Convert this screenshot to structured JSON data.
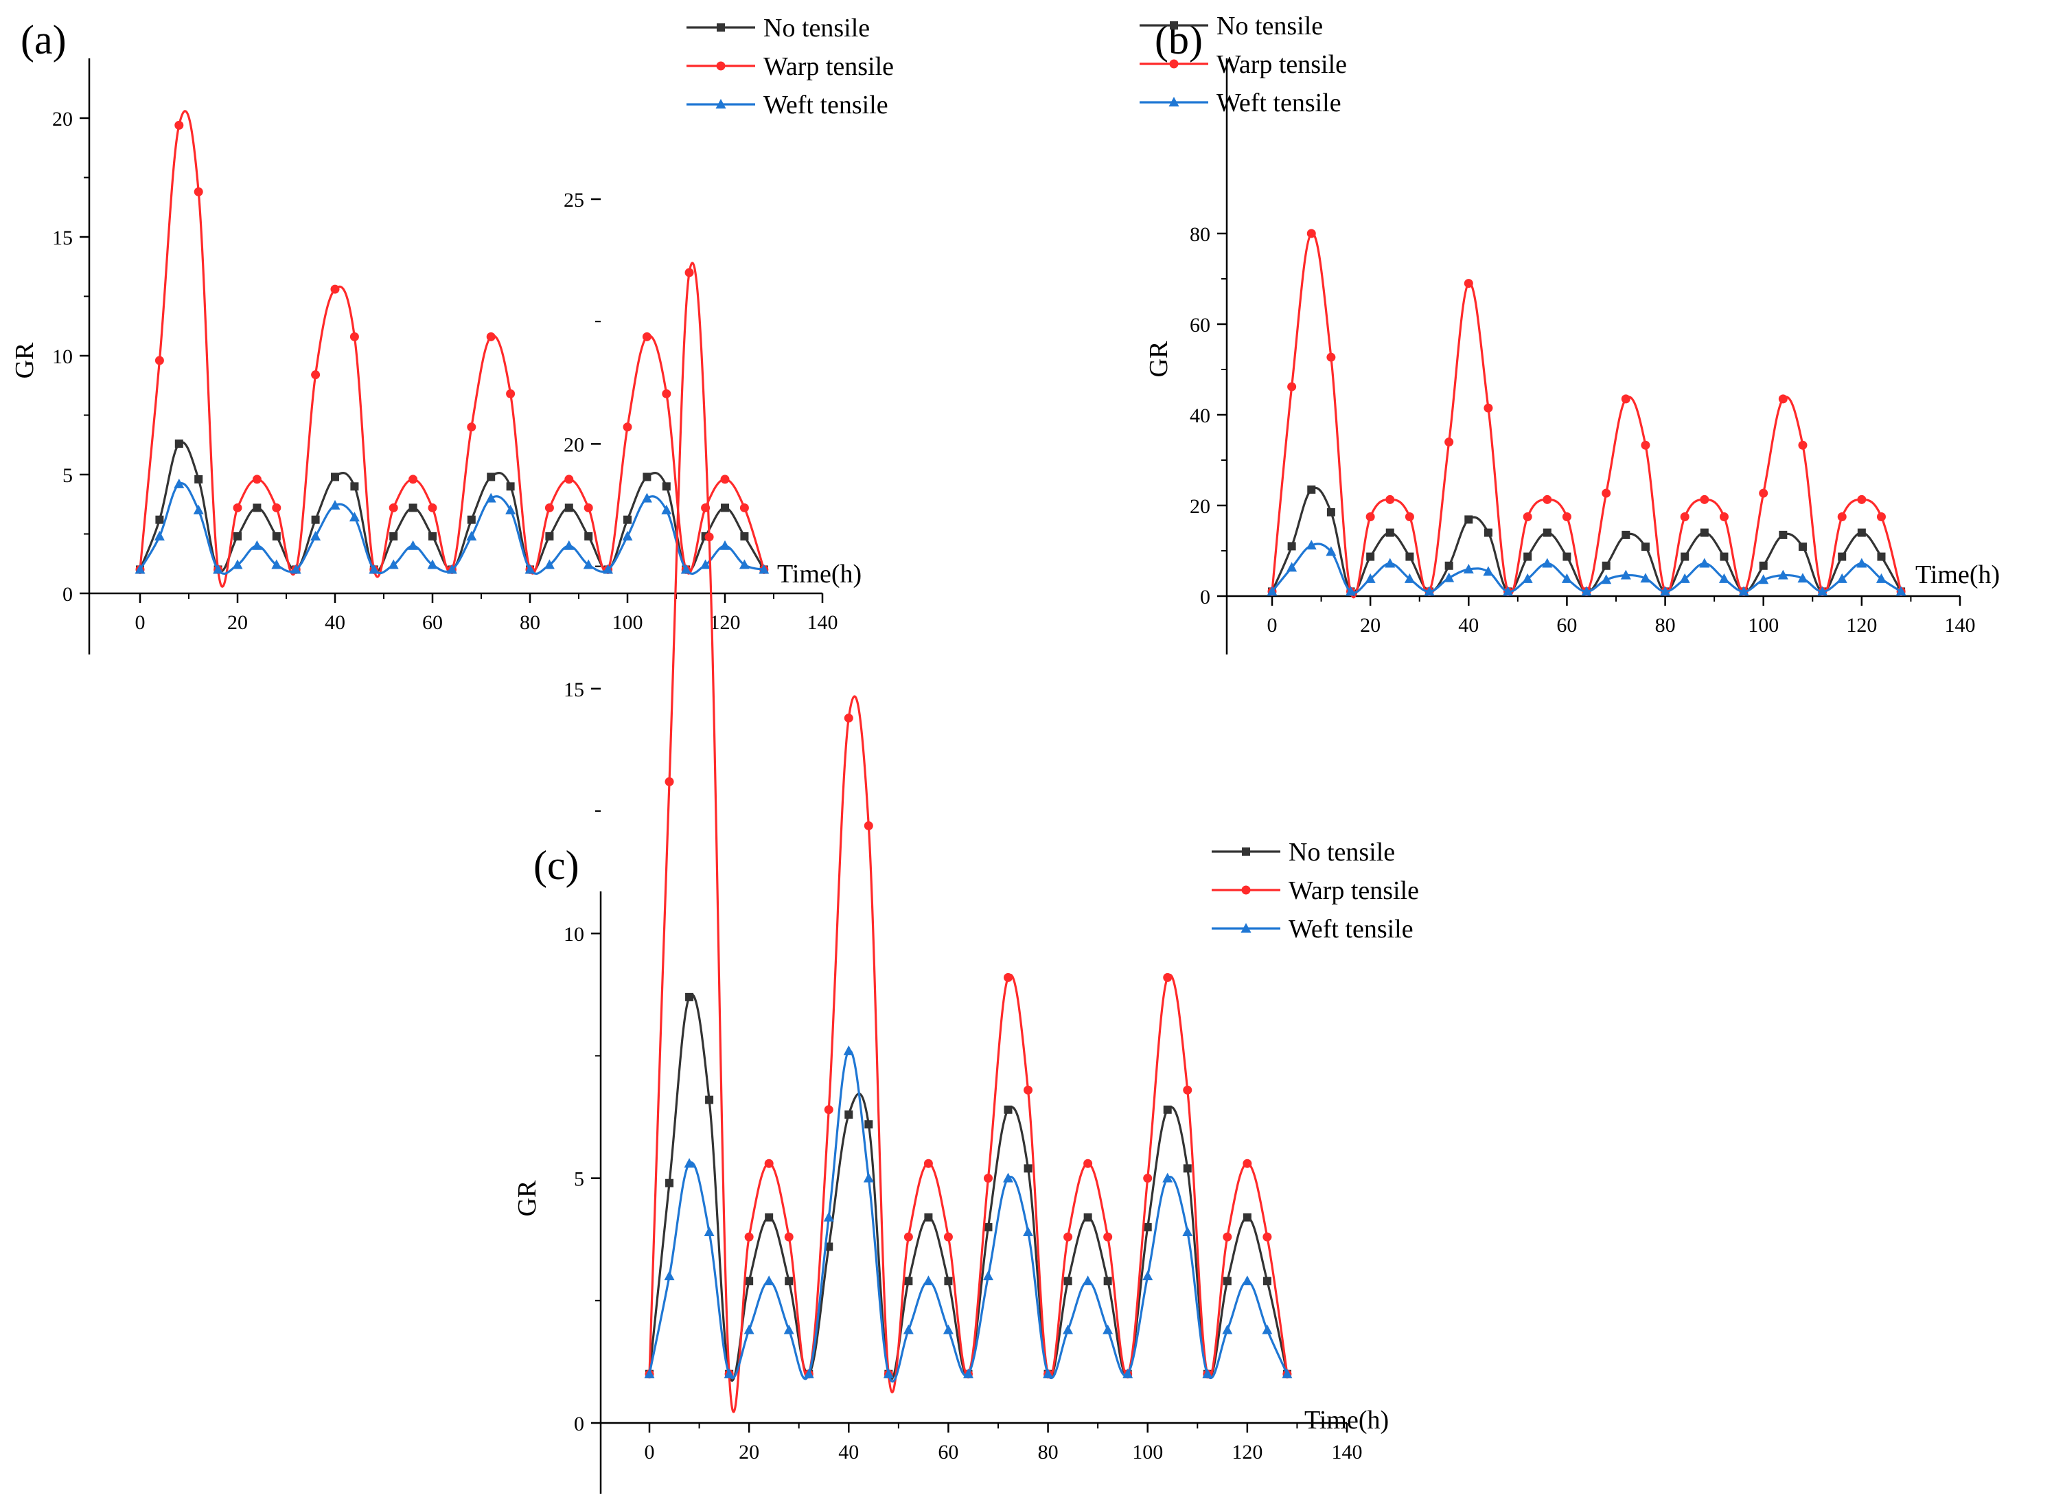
{
  "chart_data": [
    {
      "type": "line",
      "panel_label": "(a)",
      "xlabel": "Time(h)",
      "ylabel": "GR",
      "xlim": [
        -10,
        140
      ],
      "ylim": [
        -2.5,
        22.5
      ],
      "xticks": [
        0,
        20,
        40,
        60,
        80,
        100,
        120,
        140
      ],
      "yticks": [
        0,
        5,
        10,
        15,
        20
      ],
      "legend_position": "top-right",
      "series": [
        {
          "name": "No tensile",
          "color": "#333333",
          "marker": "square",
          "x": [
            0,
            4,
            8,
            12,
            16,
            20,
            24,
            28,
            32,
            36,
            40,
            44,
            48,
            52,
            56,
            60,
            64,
            68,
            72,
            76,
            80,
            84,
            88,
            92,
            96,
            100,
            104,
            108,
            112,
            116,
            120,
            124,
            128
          ],
          "values": [
            1,
            3.1,
            6.3,
            4.8,
            1,
            2.4,
            3.6,
            2.4,
            1,
            3.1,
            4.9,
            4.5,
            1,
            2.4,
            3.6,
            2.4,
            1,
            3.1,
            4.9,
            4.5,
            1,
            2.4,
            3.6,
            2.4,
            1,
            3.1,
            4.9,
            4.5,
            1,
            2.4,
            3.6,
            2.4,
            1
          ]
        },
        {
          "name": "Warp tensile",
          "color": "#ff2a2a",
          "marker": "circle",
          "x": [
            0,
            4,
            8,
            12,
            16,
            20,
            24,
            28,
            32,
            36,
            40,
            44,
            48,
            52,
            56,
            60,
            64,
            68,
            72,
            76,
            80,
            84,
            88,
            92,
            96,
            100,
            104,
            108,
            112,
            116,
            120,
            124,
            128
          ],
          "values": [
            1,
            9.8,
            19.7,
            16.9,
            1,
            3.6,
            4.8,
            3.6,
            1,
            9.2,
            12.8,
            10.8,
            1,
            3.6,
            4.8,
            3.6,
            1,
            7,
            10.8,
            8.4,
            1,
            3.6,
            4.8,
            3.6,
            1,
            7,
            10.8,
            8.4,
            1,
            3.6,
            4.8,
            3.6,
            1
          ]
        },
        {
          "name": "Weft tensile",
          "color": "#1f77d4",
          "marker": "triangle",
          "x": [
            0,
            4,
            8,
            12,
            16,
            20,
            24,
            28,
            32,
            36,
            40,
            44,
            48,
            52,
            56,
            60,
            64,
            68,
            72,
            76,
            80,
            84,
            88,
            92,
            96,
            100,
            104,
            108,
            112,
            116,
            120,
            124,
            128
          ],
          "values": [
            1,
            2.4,
            4.6,
            3.5,
            1,
            1.2,
            2,
            1.2,
            1,
            2.4,
            3.7,
            3.2,
            1,
            1.2,
            2,
            1.2,
            1,
            2.4,
            4,
            3.5,
            1,
            1.2,
            2,
            1.2,
            1,
            2.4,
            4,
            3.5,
            1,
            1.2,
            2,
            1.2,
            1
          ]
        }
      ]
    },
    {
      "type": "line",
      "panel_label": "(b)",
      "xlabel": "Time(h)",
      "ylabel": "GR",
      "xlim": [
        -10,
        140
      ],
      "ylim": [
        -10,
        90
      ],
      "xticks": [
        0,
        20,
        40,
        60,
        80,
        100,
        120,
        140
      ],
      "yticks": [
        0,
        20,
        40,
        60,
        80
      ],
      "legend_position": "top-right",
      "series": [
        {
          "name": "No tensile",
          "color": "#333333",
          "marker": "square",
          "x": [
            0,
            4,
            8,
            12,
            16,
            20,
            24,
            28,
            32,
            36,
            40,
            44,
            48,
            52,
            56,
            60,
            64,
            68,
            72,
            76,
            80,
            84,
            88,
            92,
            96,
            100,
            104,
            108,
            112,
            116,
            120,
            124,
            128
          ],
          "values": [
            1,
            11,
            23.5,
            18.5,
            1,
            8.7,
            14,
            8.7,
            1,
            6.7,
            16.9,
            14,
            1,
            8.7,
            14,
            8.7,
            1,
            6.7,
            13.5,
            10.9,
            1,
            8.7,
            14,
            8.7,
            1,
            6.7,
            13.5,
            10.9,
            1,
            8.7,
            14,
            8.7,
            1
          ]
        },
        {
          "name": "Warp tensile",
          "color": "#ff2a2a",
          "marker": "circle",
          "x": [
            0,
            4,
            8,
            12,
            16,
            20,
            24,
            28,
            32,
            36,
            40,
            44,
            48,
            52,
            56,
            60,
            64,
            68,
            72,
            76,
            80,
            84,
            88,
            92,
            96,
            100,
            104,
            108,
            112,
            116,
            120,
            124,
            128
          ],
          "values": [
            1,
            46.2,
            80,
            52.7,
            1,
            17.5,
            21.3,
            17.5,
            1,
            34,
            69,
            41.5,
            1,
            17.5,
            21.3,
            17.5,
            1,
            22.7,
            43.5,
            33.3,
            1,
            17.5,
            21.3,
            17.5,
            1,
            22.7,
            43.5,
            33.3,
            1,
            17.5,
            21.3,
            17.5,
            1
          ]
        },
        {
          "name": "Weft tensile",
          "color": "#1f77d4",
          "marker": "triangle",
          "x": [
            0,
            4,
            8,
            12,
            16,
            20,
            24,
            28,
            32,
            36,
            40,
            44,
            48,
            52,
            56,
            60,
            64,
            68,
            72,
            76,
            80,
            84,
            88,
            92,
            96,
            100,
            104,
            108,
            112,
            116,
            120,
            124,
            128
          ],
          "values": [
            1,
            6.3,
            11.2,
            9.8,
            1,
            3.8,
            7.2,
            3.8,
            1,
            4,
            5.9,
            5.4,
            1,
            3.8,
            7.2,
            3.8,
            1,
            3.6,
            4.6,
            3.9,
            1,
            3.8,
            7.2,
            3.8,
            1,
            3.6,
            4.6,
            3.9,
            1,
            3.8,
            7.2,
            3.8,
            1
          ]
        }
      ]
    },
    {
      "type": "line",
      "panel_label": "(c)",
      "xlabel": "Time(h)",
      "ylabel": "GR",
      "xlim": [
        -10,
        140
      ],
      "ylim": [
        -2.5,
        27.5
      ],
      "xticks": [
        0,
        20,
        40,
        60,
        80,
        100,
        120,
        140
      ],
      "yticks": [
        0,
        5,
        10,
        15,
        20,
        25
      ],
      "legend_position": "top-right",
      "series": [
        {
          "name": "No tensile",
          "color": "#333333",
          "marker": "square",
          "x": [
            0,
            4,
            8,
            12,
            16,
            20,
            24,
            28,
            32,
            36,
            40,
            44,
            48,
            52,
            56,
            60,
            64,
            68,
            72,
            76,
            80,
            84,
            88,
            92,
            96,
            100,
            104,
            108,
            112,
            116,
            120,
            124,
            128
          ],
          "values": [
            1,
            4.9,
            8.7,
            6.6,
            1,
            2.9,
            4.2,
            2.9,
            1,
            3.6,
            6.3,
            6.1,
            1,
            2.9,
            4.2,
            2.9,
            1,
            4,
            6.4,
            5.2,
            1,
            2.9,
            4.2,
            2.9,
            1,
            4,
            6.4,
            5.2,
            1,
            2.9,
            4.2,
            2.9,
            1
          ]
        },
        {
          "name": "Warp tensile",
          "color": "#ff2a2a",
          "marker": "circle",
          "x": [
            0,
            4,
            8,
            12,
            16,
            20,
            24,
            28,
            32,
            36,
            40,
            44,
            48,
            52,
            56,
            60,
            64,
            68,
            72,
            76,
            80,
            84,
            88,
            92,
            96,
            100,
            104,
            108,
            112,
            116,
            120,
            124,
            128
          ],
          "values": [
            1,
            13.1,
            23.5,
            18.1,
            1,
            3.8,
            5.3,
            3.8,
            1,
            6.4,
            14.4,
            12.2,
            1,
            3.8,
            5.3,
            3.8,
            1,
            5,
            9.1,
            6.8,
            1,
            3.8,
            5.3,
            3.8,
            1,
            5,
            9.1,
            6.8,
            1,
            3.8,
            5.3,
            3.8,
            1
          ]
        },
        {
          "name": "Weft tensile",
          "color": "#1f77d4",
          "marker": "triangle",
          "x": [
            0,
            4,
            8,
            12,
            16,
            20,
            24,
            28,
            32,
            36,
            40,
            44,
            48,
            52,
            56,
            60,
            64,
            68,
            72,
            76,
            80,
            84,
            88,
            92,
            96,
            100,
            104,
            108,
            112,
            116,
            120,
            124,
            128
          ],
          "values": [
            1,
            3,
            5.3,
            3.9,
            1,
            1.9,
            2.9,
            1.9,
            1,
            4.2,
            7.6,
            5,
            1,
            1.9,
            2.9,
            1.9,
            1,
            3,
            5,
            3.9,
            1,
            1.9,
            2.9,
            1.9,
            1,
            3,
            5,
            3.9,
            1,
            1.9,
            2.9,
            1.9,
            1
          ]
        }
      ]
    }
  ]
}
